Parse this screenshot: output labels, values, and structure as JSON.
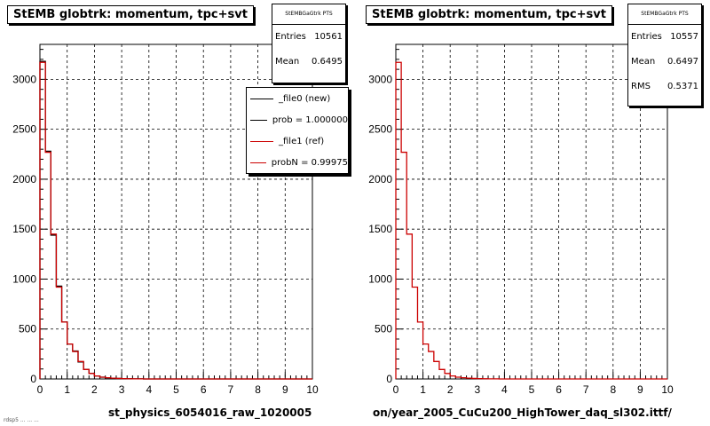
{
  "colors": {
    "new": "#000000",
    "ref": "#cc0000",
    "grid": "#000000",
    "frame": "#000000"
  },
  "legend": {
    "entries": [
      {
        "label": "_file0 (new)",
        "color": "#000000"
      },
      {
        "label": "prob = 1.000000",
        "color": "#000000"
      },
      {
        "label": "_file1 (ref)",
        "color": "#cc0000"
      },
      {
        "label": "probN = 0.99975",
        "color": "#cc0000"
      }
    ]
  },
  "footer": "rdsp5 ... ... ...",
  "panels": [
    {
      "title": "StEMB globtrk: momentum, tpc+svt",
      "stats": {
        "name": "StEMBGaGtrk PTS",
        "rows": [
          {
            "label": "Entries",
            "value": "10561"
          },
          {
            "label": "Mean",
            "value": "0.6495"
          }
        ]
      },
      "xtitle": "st_physics_6054016_raw_1020005"
    },
    {
      "title": "StEMB globtrk: momentum, tpc+svt",
      "stats": {
        "name": "StEMBGaGtrk PTS",
        "rows": [
          {
            "label": "Entries",
            "value": "10557"
          },
          {
            "label": "Mean",
            "value": "0.6497"
          },
          {
            "label": "RMS",
            "value": "0.5371"
          }
        ]
      },
      "xtitle": "on/year_2005_CuCu200_HighTower_daq_sl302.ittf/"
    }
  ],
  "chart_data": [
    {
      "type": "line",
      "title": "StEMB globtrk: momentum, tpc+svt",
      "xlabel": "st_physics_6054016_raw_1020005",
      "xlim": [
        0,
        10
      ],
      "ylim": [
        0,
        3350
      ],
      "x_ticks": [
        0,
        1,
        2,
        3,
        4,
        5,
        6,
        7,
        8,
        9,
        10
      ],
      "y_ticks": [
        0,
        500,
        1000,
        1500,
        2000,
        2500,
        3000
      ],
      "grid": true,
      "bin_width": 0.2,
      "series": [
        {
          "name": "_file0 (new)",
          "color": "#000000",
          "values": [
            3180,
            2280,
            1440,
            930,
            570,
            350,
            280,
            170,
            95,
            55,
            30,
            18,
            12,
            8,
            5,
            3,
            2,
            1,
            1,
            0,
            0,
            0,
            0,
            0,
            0,
            0,
            0,
            0,
            0,
            0,
            0,
            0,
            0,
            0,
            0,
            0,
            0,
            0,
            0,
            0,
            0,
            0,
            0,
            0,
            0,
            0,
            0,
            0,
            0,
            0
          ]
        },
        {
          "name": "_file1 (ref)",
          "color": "#cc0000",
          "values": [
            3170,
            2270,
            1450,
            920,
            570,
            350,
            275,
            175,
            95,
            55,
            30,
            18,
            12,
            8,
            5,
            3,
            2,
            1,
            1,
            0,
            0,
            0,
            0,
            0,
            0,
            0,
            0,
            0,
            0,
            0,
            0,
            0,
            0,
            0,
            0,
            0,
            0,
            0,
            0,
            0,
            0,
            0,
            0,
            0,
            0,
            0,
            0,
            0,
            0,
            0
          ]
        }
      ]
    },
    {
      "type": "line",
      "title": "StEMB globtrk: momentum, tpc+svt",
      "xlabel": "on/year_2005_CuCu200_HighTower_daq_sl302.ittf/",
      "xlim": [
        0,
        10
      ],
      "ylim": [
        0,
        3350
      ],
      "x_ticks": [
        0,
        1,
        2,
        3,
        4,
        5,
        6,
        7,
        8,
        9,
        10
      ],
      "y_ticks": [
        0,
        500,
        1000,
        1500,
        2000,
        2500,
        3000
      ],
      "grid": true,
      "bin_width": 0.2,
      "series": [
        {
          "name": "_file1 (ref)",
          "color": "#cc0000",
          "values": [
            3170,
            2270,
            1450,
            920,
            570,
            350,
            275,
            175,
            95,
            55,
            30,
            18,
            12,
            8,
            5,
            3,
            2,
            1,
            1,
            0,
            0,
            0,
            0,
            0,
            0,
            0,
            0,
            0,
            0,
            0,
            0,
            0,
            0,
            0,
            0,
            0,
            0,
            0,
            0,
            0,
            0,
            0,
            0,
            0,
            0,
            0,
            0,
            0,
            0,
            0
          ]
        }
      ]
    }
  ]
}
